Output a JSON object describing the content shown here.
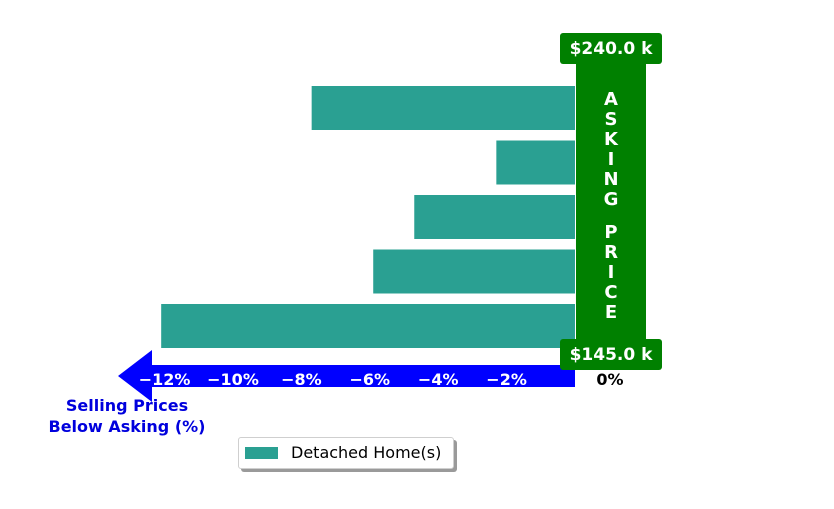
{
  "chart_data": {
    "type": "bar",
    "orientation": "horizontal",
    "series": [
      {
        "name": "Detached Home(s)",
        "values": [
          -7.7,
          -2.3,
          -4.7,
          -5.9,
          -12.1
        ]
      }
    ],
    "xlim": [
      -12.5,
      0
    ],
    "x_ticks": [
      -12,
      -10,
      -8,
      -6,
      -4,
      -2
    ],
    "x_tick_labels": [
      "−12%",
      "−10%",
      "−8%",
      "−6%",
      "−4%",
      "−2%"
    ],
    "zero_label": "0%",
    "xlabel": "Selling Prices\nBelow Asking (%)",
    "asking_price_label": "ASKING PRICE",
    "price_top_label": "$240.0 k",
    "price_bottom_label": "$145.0 k",
    "legend_position": "bottom-center",
    "colors": {
      "bar": "#2aa092",
      "price_column": "#008000",
      "axis_arrow": "#0000ff",
      "xlabel": "#0000dd"
    }
  }
}
